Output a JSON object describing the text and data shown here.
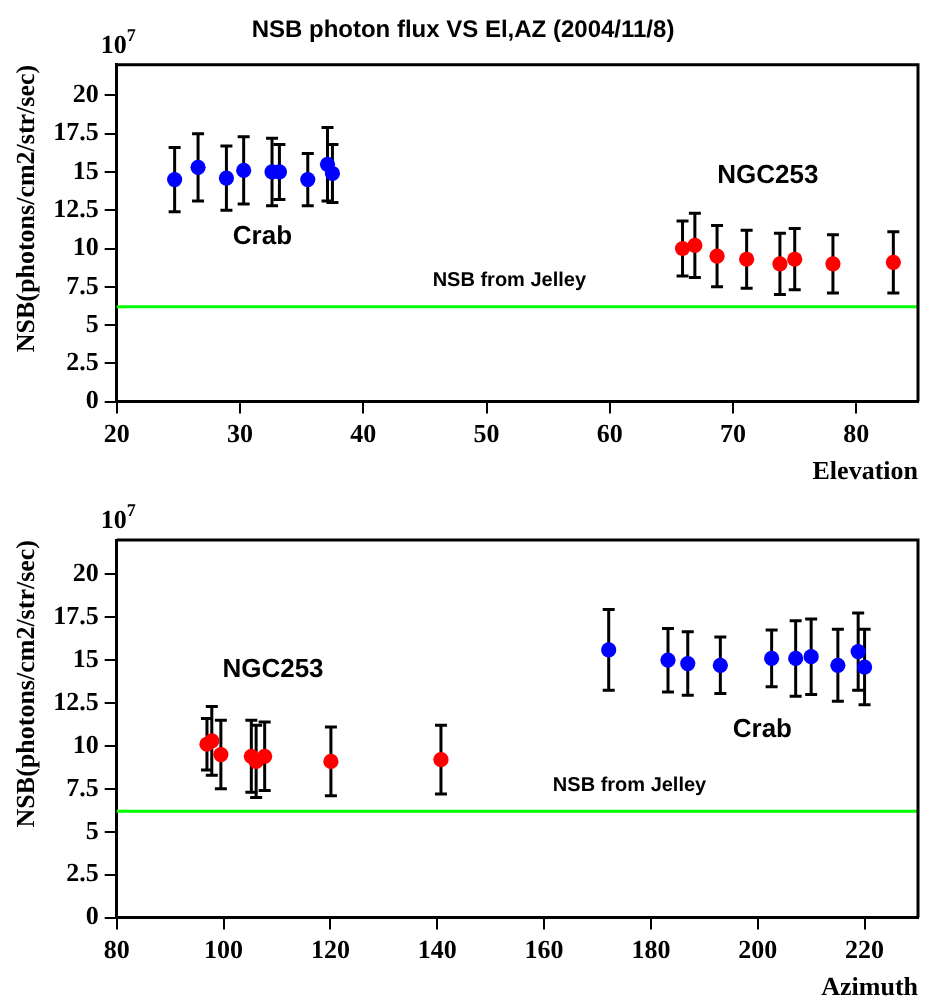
{
  "chart_data": [
    {
      "type": "scatter",
      "title": "NSB photon flux VS El,AZ (2004/11/8)",
      "xlabel": "Elevation",
      "ylabel": "NSB(photons/cm2/str/sec)",
      "xlim": [
        20,
        85
      ],
      "xticks": [
        20,
        30,
        40,
        50,
        60,
        70,
        80
      ],
      "ylim": [
        0,
        22
      ],
      "yticks": [
        0,
        2.5,
        5,
        7.5,
        10,
        12.5,
        15,
        17.5,
        20
      ],
      "grid": false,
      "legend": false,
      "marker": "circle",
      "series": [
        {
          "name": "Crab",
          "color": "#0000ff",
          "x": [
            24.7,
            26.6,
            28.9,
            30.3,
            32.6,
            33.2,
            35.5,
            37.1,
            37.5
          ],
          "values": [
            14.5,
            15.3,
            14.6,
            15.1,
            15.0,
            15.0,
            14.5,
            15.5,
            14.9
          ],
          "errors": [
            2.1,
            2.2,
            2.1,
            2.2,
            2.2,
            1.8,
            1.7,
            2.4,
            1.9
          ]
        },
        {
          "name": "NGC253",
          "color": "#ff0000",
          "x": [
            65.9,
            66.9,
            68.7,
            71.1,
            73.8,
            75.0,
            78.1,
            83.0
          ],
          "values": [
            10.0,
            10.2,
            9.5,
            9.3,
            9.0,
            9.3,
            9.0,
            9.1
          ],
          "errors": [
            1.8,
            2.1,
            2.0,
            1.9,
            2.0,
            2.0,
            1.9,
            2.0
          ]
        }
      ],
      "ref_lines": [
        {
          "axis": "y",
          "value": 6.2,
          "label": "NSB from Jelley",
          "color": "#00ff00"
        }
      ],
      "annotations": [
        "10$^{7}$"
      ]
    },
    {
      "type": "scatter",
      "xlabel": "Azimuth",
      "ylabel": "NSB(photons/cm2/str/sec)",
      "xlim": [
        80,
        230
      ],
      "xticks": [
        80,
        100,
        120,
        140,
        160,
        180,
        200,
        220
      ],
      "ylim": [
        0,
        22
      ],
      "yticks": [
        0,
        2.5,
        5,
        7.5,
        10,
        12.5,
        15,
        17.5,
        20
      ],
      "grid": false,
      "legend": false,
      "marker": "circle",
      "series": [
        {
          "name": "NGC253",
          "color": "#ff0000",
          "x": [
            96.9,
            97.8,
            99.5,
            105.2,
            106.1,
            107.7,
            120.1,
            140.7
          ],
          "values": [
            10.1,
            10.3,
            9.5,
            9.4,
            9.1,
            9.4,
            9.1,
            9.2
          ],
          "errors": [
            1.5,
            2.0,
            2.0,
            2.1,
            2.1,
            2.0,
            2.0,
            2.0
          ]
        },
        {
          "name": "Crab",
          "color": "#0000ff",
          "x": [
            172.1,
            183.2,
            186.9,
            193.0,
            202.6,
            207.1,
            210.0,
            215.0,
            218.8,
            220.0
          ],
          "values": [
            15.6,
            15.0,
            14.8,
            14.7,
            15.1,
            15.1,
            15.2,
            14.7,
            15.5,
            14.6
          ],
          "errors": [
            2.35,
            1.85,
            1.85,
            1.65,
            1.65,
            2.2,
            2.2,
            2.1,
            2.25,
            2.2
          ]
        }
      ],
      "ref_lines": [
        {
          "axis": "y",
          "value": 6.2,
          "label": "NSB from Jelley",
          "color": "#00ff00"
        }
      ],
      "annotations": [
        "10$^{7}$"
      ]
    }
  ]
}
